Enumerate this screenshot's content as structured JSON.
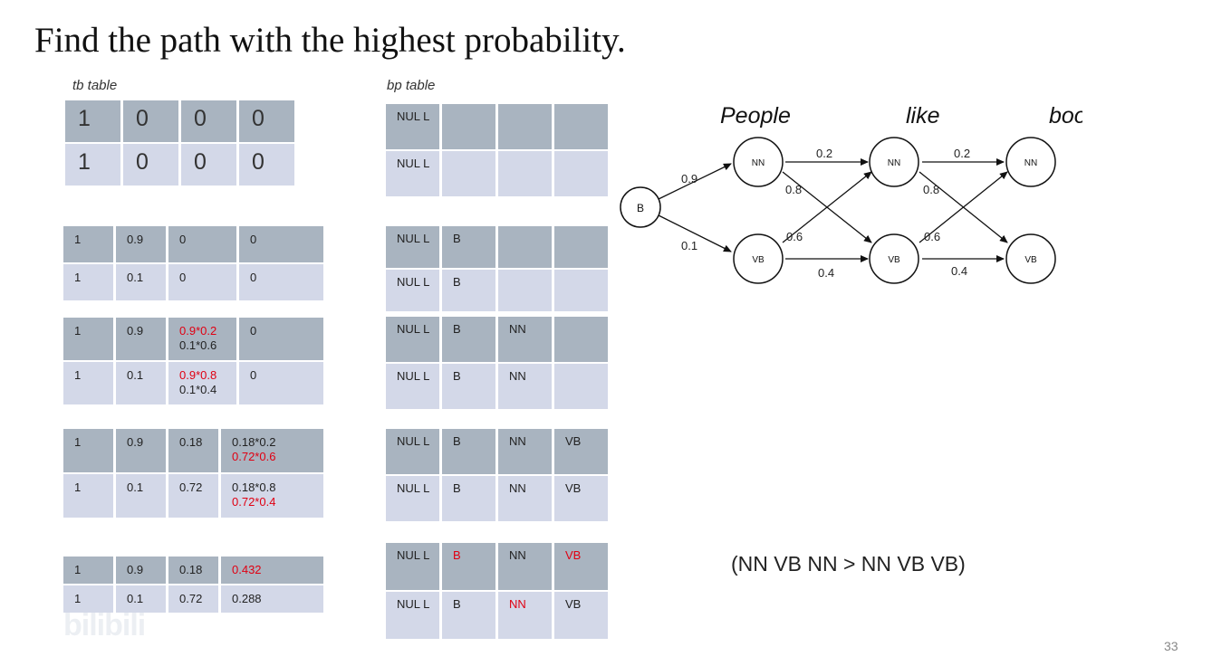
{
  "title": "Find the path with the highest probability.",
  "tb_caption": "tb table",
  "bp_caption": "bp table",
  "tb_initial": [
    [
      "1",
      "0",
      "0",
      "0"
    ],
    [
      "1",
      "0",
      "0",
      "0"
    ]
  ],
  "bp_initial": [
    [
      "NUL L",
      "",
      "",
      ""
    ],
    [
      "NUL L",
      "",
      "",
      ""
    ]
  ],
  "step1_tb": [
    [
      "1",
      "0.9",
      "0",
      "0"
    ],
    [
      "1",
      "0.1",
      "0",
      "0"
    ]
  ],
  "step1_bp": [
    [
      "NUL L",
      "B",
      "",
      ""
    ],
    [
      "NUL L",
      "B",
      "",
      ""
    ]
  ],
  "step2_tb": [
    [
      "1",
      "0.9",
      {
        "lines": [
          {
            "t": "0.9*0.2",
            "red": true
          },
          {
            "t": "0.1*0.6",
            "red": false
          }
        ]
      },
      "0"
    ],
    [
      "1",
      "0.1",
      {
        "lines": [
          {
            "t": "0.9*0.8",
            "red": true
          },
          {
            "t": "0.1*0.4",
            "red": false
          }
        ]
      },
      "0"
    ]
  ],
  "step2_bp": [
    [
      "NUL L",
      "B",
      "NN",
      ""
    ],
    [
      "NUL L",
      "B",
      "NN",
      ""
    ]
  ],
  "step3_tb": [
    [
      "1",
      "0.9",
      "0.18",
      {
        "lines": [
          {
            "t": "0.18*0.2",
            "red": false
          },
          {
            "t": "0.72*0.6",
            "red": true
          }
        ]
      }
    ],
    [
      "1",
      "0.1",
      "0.72",
      {
        "lines": [
          {
            "t": "0.18*0.8",
            "red": false
          },
          {
            "t": "0.72*0.4",
            "red": true
          }
        ]
      }
    ]
  ],
  "step3_bp": [
    [
      "NUL L",
      "B",
      "NN",
      "VB"
    ],
    [
      "NUL L",
      "B",
      "NN",
      "VB"
    ]
  ],
  "step4_tb": [
    [
      "1",
      "0.9",
      "0.18",
      {
        "lines": [
          {
            "t": "0.432",
            "red": true
          }
        ]
      }
    ],
    [
      "1",
      "0.1",
      "0.72",
      "0.288"
    ]
  ],
  "step4_bp": [
    [
      "NUL L",
      {
        "lines": [
          {
            "t": "B",
            "red": true
          }
        ]
      },
      "NN",
      {
        "lines": [
          {
            "t": "VB",
            "red": true
          }
        ]
      }
    ],
    [
      "NUL L",
      "B",
      {
        "lines": [
          {
            "t": "NN",
            "red": true
          }
        ]
      },
      "VB"
    ]
  ],
  "diagram": {
    "words": [
      "People",
      "like",
      "books"
    ],
    "start_node": "B",
    "nn_label": "NN",
    "vb_label": "VB",
    "edges": {
      "b_nn": "0.9",
      "b_vb": "0.1",
      "nn_nn": "0.2",
      "nn_vb": "0.8",
      "vb_nn": "0.6",
      "vb_vb": "0.4"
    }
  },
  "result": "(NN VB NN > NN VB VB)",
  "page_number": "33",
  "watermark": "bilibili",
  "colors": {
    "row_dark": "#a9b4c0",
    "row_light": "#d3d8e8",
    "highlight": "#e00012"
  }
}
